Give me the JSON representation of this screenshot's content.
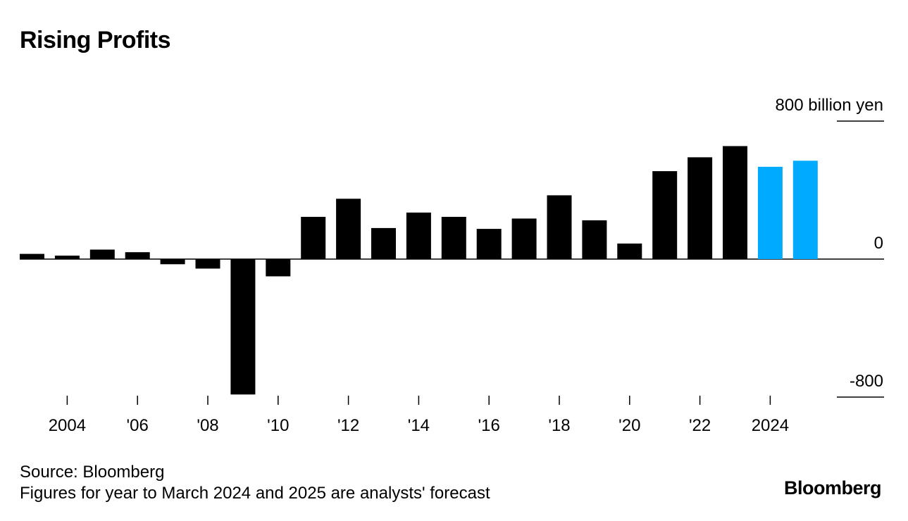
{
  "chart_data": {
    "type": "bar",
    "title": "Rising Profits",
    "unit_label": "800 billion yen",
    "categories": [
      "2003",
      "2004",
      "2005",
      "2006",
      "2007",
      "2008",
      "2009",
      "2010",
      "2011",
      "2012",
      "2013",
      "2014",
      "2015",
      "2016",
      "2017",
      "2018",
      "2019",
      "2020",
      "2021",
      "2022",
      "2023",
      "2024",
      "2025"
    ],
    "values": [
      30,
      20,
      55,
      40,
      -30,
      -55,
      -785,
      -100,
      245,
      350,
      180,
      270,
      245,
      175,
      235,
      370,
      225,
      90,
      510,
      590,
      655,
      535,
      570
    ],
    "forecast_categories": [
      "2024",
      "2025"
    ],
    "ylim": [
      -800,
      800
    ],
    "yticks": [
      {
        "value": 800,
        "label": "800 billion yen"
      },
      {
        "value": 0,
        "label": "0"
      },
      {
        "value": -800,
        "label": "-800"
      }
    ],
    "xticks": [
      {
        "category": "2004",
        "label": "2004"
      },
      {
        "category": "2006",
        "label": "'06"
      },
      {
        "category": "2008",
        "label": "'08"
      },
      {
        "category": "2010",
        "label": "'10"
      },
      {
        "category": "2012",
        "label": "'12"
      },
      {
        "category": "2014",
        "label": "'14"
      },
      {
        "category": "2016",
        "label": "'16"
      },
      {
        "category": "2018",
        "label": "'18"
      },
      {
        "category": "2020",
        "label": "'20"
      },
      {
        "category": "2022",
        "label": "'22"
      },
      {
        "category": "2024",
        "label": "2024"
      }
    ],
    "colors": {
      "actual": "#000000",
      "forecast": "#00aaff"
    }
  },
  "footer": {
    "source": "Source: Bloomberg",
    "note": "Figures for year to March 2024 and 2025 are analysts' forecast"
  },
  "brand": "Bloomberg"
}
